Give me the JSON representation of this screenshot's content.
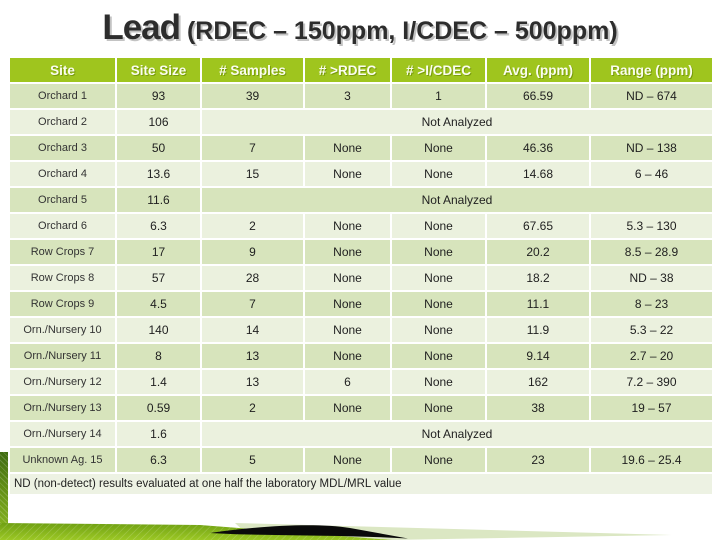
{
  "title": {
    "main": "Lead",
    "subtitle": " (RDEC – 150ppm, I/CDEC – 500ppm)"
  },
  "table": {
    "columns": [
      "Site",
      "Site Size",
      "# Samples",
      "# >RDEC",
      "# >I/CDEC",
      "Avg. (ppm)",
      "Range (ppm)"
    ],
    "not_analyzed_label": "Not Analyzed",
    "rows": [
      {
        "site": "Orchard 1",
        "site_size": "93",
        "samples": "39",
        "gt_rdec": "3",
        "gt_icdec": "1",
        "avg": "66.59",
        "range": "ND – 674"
      },
      {
        "site": "Orchard 2",
        "site_size": "106",
        "not_analyzed": true
      },
      {
        "site": "Orchard 3",
        "site_size": "50",
        "samples": "7",
        "gt_rdec": "None",
        "gt_icdec": "None",
        "avg": "46.36",
        "range": "ND – 138"
      },
      {
        "site": "Orchard 4",
        "site_size": "13.6",
        "samples": "15",
        "gt_rdec": "None",
        "gt_icdec": "None",
        "avg": "14.68",
        "range": "6 – 46"
      },
      {
        "site": "Orchard 5",
        "site_size": "11.6",
        "not_analyzed": true
      },
      {
        "site": "Orchard 6",
        "site_size": "6.3",
        "samples": "2",
        "gt_rdec": "None",
        "gt_icdec": "None",
        "avg": "67.65",
        "range": "5.3 – 130"
      },
      {
        "site": "Row Crops 7",
        "site_size": "17",
        "samples": "9",
        "gt_rdec": "None",
        "gt_icdec": "None",
        "avg": "20.2",
        "range": "8.5 – 28.9"
      },
      {
        "site": "Row Crops 8",
        "site_size": "57",
        "samples": "28",
        "gt_rdec": "None",
        "gt_icdec": "None",
        "avg": "18.2",
        "range": "ND – 38"
      },
      {
        "site": "Row Crops 9",
        "site_size": "4.5",
        "samples": "7",
        "gt_rdec": "None",
        "gt_icdec": "None",
        "avg": "11.1",
        "range": "8 – 23"
      },
      {
        "site": "Orn./Nursery 10",
        "site_size": "140",
        "samples": "14",
        "gt_rdec": "None",
        "gt_icdec": "None",
        "avg": "11.9",
        "range": "5.3 – 22"
      },
      {
        "site": "Orn./Nursery 11",
        "site_size": "8",
        "samples": "13",
        "gt_rdec": "None",
        "gt_icdec": "None",
        "avg": "9.14",
        "range": "2.7 – 20"
      },
      {
        "site": "Orn./Nursery 12",
        "site_size": "1.4",
        "samples": "13",
        "gt_rdec": "6",
        "gt_icdec": "None",
        "avg": "162",
        "range": "7.2 – 390"
      },
      {
        "site": "Orn./Nursery 13",
        "site_size": "0.59",
        "samples": "2",
        "gt_rdec": "None",
        "gt_icdec": "None",
        "avg": "38",
        "range": "19 – 57"
      },
      {
        "site": "Orn./Nursery 14",
        "site_size": "1.6",
        "not_analyzed": true
      },
      {
        "site": "Unknown Ag. 15",
        "site_size": "6.3",
        "samples": "5",
        "gt_rdec": "None",
        "gt_icdec": "None",
        "avg": "23",
        "range": "19.6 – 25.4"
      }
    ],
    "footnote": "ND (non-detect) results evaluated at one half the laboratory MDL/MRL value"
  },
  "colors": {
    "header_green": "#9fc51e",
    "row_dark": "#d7e4bc",
    "row_light": "#ebf1de",
    "footnote_bg": "#edf2e3",
    "band_green_dark": "#6fa012",
    "band_green_light": "#9cc825",
    "pale_wedge": "#dbe7c3",
    "swoosh_black": "#0a0a0a",
    "title_text": "#2d2d2d"
  }
}
